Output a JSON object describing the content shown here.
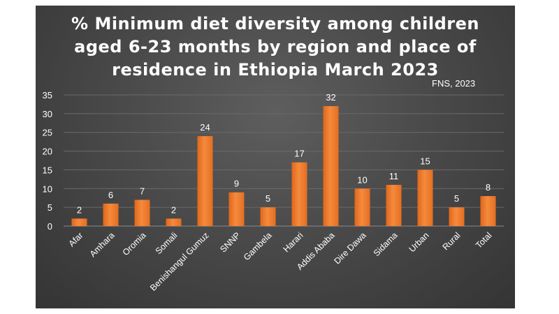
{
  "chart_data": {
    "type": "bar",
    "title": "% Minimum diet diversity among children aged 6-23 months by region and place of residence in Ethiopia March 2023",
    "title_lines": [
      "% Minimum diet diversity among children",
      "aged 6-23 months by region and place of",
      "residence in Ethiopia March 2023"
    ],
    "source_note": "FNS, 2023",
    "categories": [
      "Afar",
      "Amhara",
      "Oromia",
      "Somali",
      "Benishangul Gumuz",
      "SNNP",
      "Gambela",
      "Harari",
      "Addis Ababa",
      "Dire Dawa",
      "Sidama",
      "Urban",
      "Rural",
      "Total"
    ],
    "values": [
      2,
      6,
      7,
      2,
      24,
      9,
      5,
      17,
      32,
      10,
      11,
      15,
      5,
      8
    ],
    "ylim": [
      0,
      35
    ],
    "yticks": [
      0,
      5,
      10,
      15,
      20,
      25,
      30,
      35
    ],
    "xlabel": "",
    "ylabel": "",
    "grid": true,
    "data_labels": true,
    "bar_color": "#f07d2e",
    "background_color": "#4a4a4a"
  }
}
